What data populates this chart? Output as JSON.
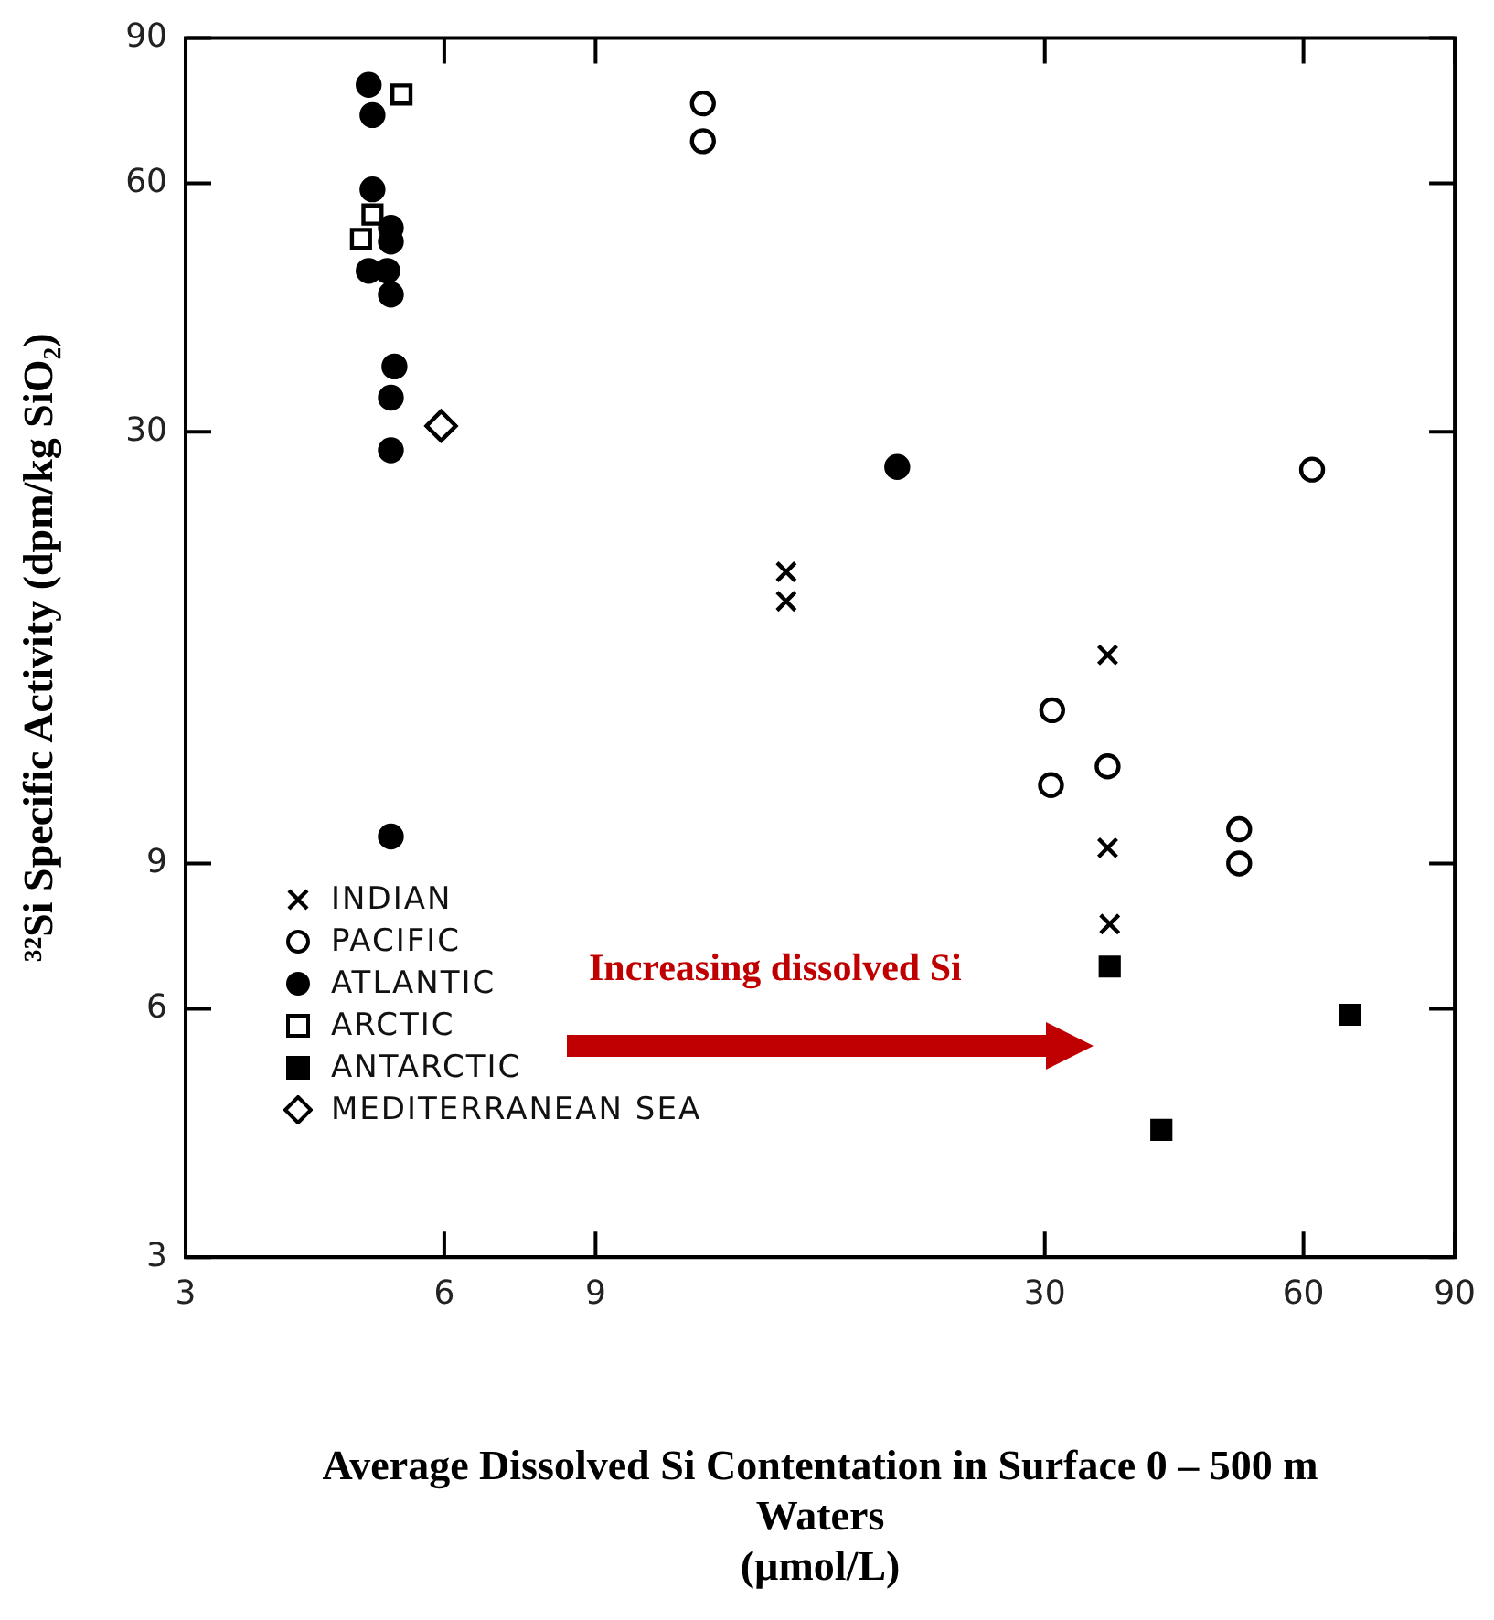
{
  "chart_data": {
    "type": "scatter",
    "xlabel": "Average Dissolved Si Contentation in Surface 0 – 500 m\nWaters\n(µmol/L)",
    "ylabel": "³²Si Specific Activity (dpm/kg SiO₂)",
    "log": "xy",
    "xlim": [
      3,
      90
    ],
    "ylim": [
      3,
      90
    ],
    "xticks": [
      3,
      6,
      9,
      30,
      60,
      90
    ],
    "yticks": [
      3,
      6,
      9,
      30,
      60,
      90
    ],
    "grid": false,
    "legend": "bottom left",
    "annotations": [
      "Increasing dissolved Si"
    ],
    "series": [
      {
        "name": "INDIAN",
        "color": "#000000",
        "marker": "cross",
        "x": [
          15.0,
          15.0,
          35.5,
          35.5,
          35.7
        ],
        "values": [
          20.3,
          18.7,
          16.1,
          9.4,
          7.6
        ]
      },
      {
        "name": "PACIFIC",
        "color": "#000000",
        "marker": "circle",
        "x": [
          12.0,
          12.0,
          61.4,
          30.6,
          30.5,
          35.5,
          50.5,
          50.5
        ],
        "values": [
          75,
          67.5,
          27.0,
          13.8,
          11.2,
          11.8,
          9.9,
          9.0
        ]
      },
      {
        "name": "ATLANTIC",
        "color": "#000000",
        "marker": "circle",
        "x": [
          4.9,
          4.95,
          4.95,
          5.2,
          5.2,
          4.9,
          5.15,
          5.2,
          5.25,
          5.2,
          5.2,
          5.2,
          20.2
        ],
        "values": [
          79,
          72.6,
          59,
          53,
          51,
          47,
          47,
          44,
          36,
          33,
          28.5,
          9.7,
          27.2
        ]
      },
      {
        "name": "ARCTIC",
        "color": "#000000",
        "marker": "square",
        "x": [
          5.35,
          4.8,
          4.95
        ],
        "values": [
          76.9,
          51.4,
          55.0
        ]
      },
      {
        "name": "ANTARCTIC",
        "color": "#000000",
        "marker": "square",
        "x": [
          35.7,
          68.0,
          41.0
        ],
        "values": [
          6.75,
          5.9,
          4.28
        ]
      },
      {
        "name": "MEDITERRANEAN SEA",
        "color": "#000000",
        "marker": "diamond",
        "x": [
          5.95
        ],
        "values": [
          30.5
        ]
      }
    ]
  }
}
